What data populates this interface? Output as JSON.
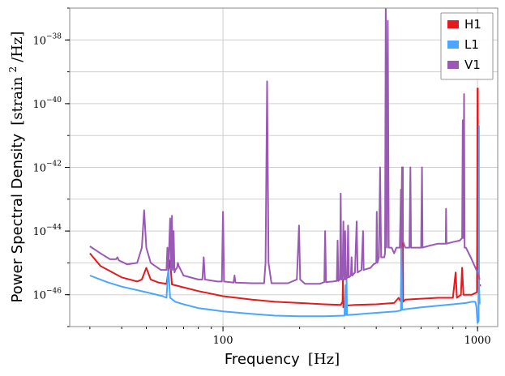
{
  "chart_data": {
    "type": "line",
    "xlabel": "Frequency",
    "xlabel_unit": "[Hz]",
    "ylabel": "Power Spectral Density",
    "ylabel_unit_prefix": "[strain",
    "ylabel_unit_sup": "2",
    "ylabel_unit_suffix": "/Hz]",
    "x_scale": "log",
    "y_scale": "log",
    "xlim": [
      25,
      1200
    ],
    "ylim": [
      1e-47,
      1e-37
    ],
    "grid": true,
    "legend_position": "top-right",
    "x_ticks": [
      {
        "value": 100,
        "label": "100"
      },
      {
        "value": 1000,
        "label": "1000"
      }
    ],
    "y_ticks": [
      {
        "value": 1e-46,
        "base": "10",
        "exp": "−46"
      },
      {
        "value": 1e-44,
        "base": "10",
        "exp": "−44"
      },
      {
        "value": 1e-42,
        "base": "10",
        "exp": "−42"
      },
      {
        "value": 1e-40,
        "base": "10",
        "exp": "−40"
      },
      {
        "value": 1e-38,
        "base": "10",
        "exp": "−38"
      }
    ],
    "series": [
      {
        "name": "H1",
        "color": "#e41a1c",
        "points": [
          [
            30,
            2e-45
          ],
          [
            33,
            8e-46
          ],
          [
            40,
            3.5e-46
          ],
          [
            46,
            2.6e-46
          ],
          [
            48,
            3e-46
          ],
          [
            50,
            7e-46
          ],
          [
            52,
            3e-46
          ],
          [
            56,
            2.4e-46
          ],
          [
            60,
            2.2e-46
          ],
          [
            62,
            1.2e-45
          ],
          [
            63,
            2.1e-46
          ],
          [
            70,
            1.7e-46
          ],
          [
            80,
            1.3e-46
          ],
          [
            100,
            9e-47
          ],
          [
            130,
            7e-47
          ],
          [
            160,
            6e-47
          ],
          [
            200,
            5.5e-47
          ],
          [
            250,
            5e-47
          ],
          [
            290,
            4.8e-47
          ],
          [
            295,
            6e-47
          ],
          [
            296,
            3e-46
          ],
          [
            297,
            4e-47
          ],
          [
            300,
            4.5e-47
          ],
          [
            330,
            4.8e-47
          ],
          [
            400,
            5e-47
          ],
          [
            470,
            5.5e-47
          ],
          [
            490,
            8e-47
          ],
          [
            500,
            6e-47
          ],
          [
            505,
            1e-42
          ],
          [
            508,
            1e-42
          ],
          [
            510,
            6e-47
          ],
          [
            520,
            7e-47
          ],
          [
            600,
            7.5e-47
          ],
          [
            700,
            8e-47
          ],
          [
            800,
            8e-47
          ],
          [
            820,
            5e-46
          ],
          [
            830,
            8e-47
          ],
          [
            860,
            1e-46
          ],
          [
            870,
            7e-46
          ],
          [
            880,
            1e-46
          ],
          [
            950,
            1e-46
          ],
          [
            995,
            1.2e-46
          ],
          [
            1000,
            3e-40
          ],
          [
            1003,
            3e-40
          ],
          [
            1006,
            1.5e-46
          ],
          [
            1020,
            2e-46
          ],
          [
            1030,
            2e-46
          ]
        ]
      },
      {
        "name": "L1",
        "color": "#4ba6ff",
        "points": [
          [
            30,
            4e-46
          ],
          [
            35,
            2.5e-46
          ],
          [
            40,
            1.8e-46
          ],
          [
            50,
            1.2e-46
          ],
          [
            58,
            9e-47
          ],
          [
            60,
            8e-47
          ],
          [
            61,
            7e-46
          ],
          [
            62,
            8e-47
          ],
          [
            65,
            6e-47
          ],
          [
            70,
            5e-47
          ],
          [
            80,
            3.8e-47
          ],
          [
            100,
            3e-47
          ],
          [
            130,
            2.5e-47
          ],
          [
            160,
            2.2e-47
          ],
          [
            200,
            2.1e-47
          ],
          [
            250,
            2.1e-47
          ],
          [
            300,
            2.2e-47
          ],
          [
            303,
            2e-46
          ],
          [
            304,
            2.3e-47
          ],
          [
            306,
            3e-46
          ],
          [
            307,
            2.3e-47
          ],
          [
            330,
            2.4e-47
          ],
          [
            400,
            2.7e-47
          ],
          [
            480,
            3e-47
          ],
          [
            500,
            3.2e-47
          ],
          [
            503,
            3.5e-45
          ],
          [
            505,
            3.4e-47
          ],
          [
            520,
            3.5e-47
          ],
          [
            600,
            4e-47
          ],
          [
            700,
            4.5e-47
          ],
          [
            800,
            5e-47
          ],
          [
            900,
            5.5e-47
          ],
          [
            950,
            6e-47
          ],
          [
            980,
            6e-47
          ],
          [
            990,
            4e-47
          ],
          [
            1000,
            1.3e-47
          ],
          [
            1010,
            1.5e-47
          ],
          [
            1012,
            2e-41
          ],
          [
            1014,
            2e-46
          ],
          [
            1020,
            5e-47
          ]
        ]
      },
      {
        "name": "V1",
        "color": "#9b59b6",
        "points": [
          [
            30,
            3.3e-45
          ],
          [
            33,
            2e-45
          ],
          [
            36,
            1.3e-45
          ],
          [
            38,
            1.3e-45
          ],
          [
            38.5,
            1.5e-45
          ],
          [
            39,
            1.2e-45
          ],
          [
            42,
            9e-46
          ],
          [
            46,
            1e-45
          ],
          [
            48,
            3e-45
          ],
          [
            49,
            4.5e-44
          ],
          [
            50,
            3e-45
          ],
          [
            52,
            1e-45
          ],
          [
            57,
            6e-46
          ],
          [
            60,
            6e-46
          ],
          [
            60.5,
            3e-45
          ],
          [
            61,
            6e-46
          ],
          [
            62,
            2.5e-44
          ],
          [
            62.5,
            6e-46
          ],
          [
            63,
            3e-44
          ],
          [
            63.5,
            6e-46
          ],
          [
            64,
            1e-44
          ],
          [
            64.5,
            5e-46
          ],
          [
            65,
            6e-46
          ],
          [
            66,
            7e-46
          ],
          [
            66.5,
            1e-45
          ],
          [
            67,
            8e-46
          ],
          [
            70,
            4e-46
          ],
          [
            80,
            3e-46
          ],
          [
            83,
            3e-46
          ],
          [
            84,
            1.5e-45
          ],
          [
            85,
            3e-46
          ],
          [
            95,
            2.6e-46
          ],
          [
            99,
            2.6e-46
          ],
          [
            100,
            4e-44
          ],
          [
            101,
            2.6e-46
          ],
          [
            110,
            2.4e-46
          ],
          [
            111,
            4e-46
          ],
          [
            112,
            2.4e-46
          ],
          [
            130,
            2.3e-46
          ],
          [
            145,
            2.3e-46
          ],
          [
            147,
            1e-45
          ],
          [
            149,
            5e-40
          ],
          [
            151,
            1e-45
          ],
          [
            155,
            2.3e-46
          ],
          [
            180,
            2.3e-46
          ],
          [
            195,
            3e-46
          ],
          [
            199,
            1.5e-44
          ],
          [
            201,
            3e-46
          ],
          [
            210,
            2.2e-46
          ],
          [
            240,
            2.2e-46
          ],
          [
            250,
            2.5e-46
          ],
          [
            252,
            1e-44
          ],
          [
            254,
            2.5e-46
          ],
          [
            270,
            2.6e-46
          ],
          [
            280,
            2.7e-46
          ],
          [
            282,
            5e-45
          ],
          [
            284,
            2.7e-46
          ],
          [
            288,
            3e-46
          ],
          [
            290,
            1.5e-43
          ],
          [
            292,
            3e-46
          ],
          [
            295,
            3e-46
          ],
          [
            297,
            2e-44
          ],
          [
            298,
            1e-45
          ],
          [
            300,
            3e-46
          ],
          [
            302,
            1e-44
          ],
          [
            304,
            3e-46
          ],
          [
            308,
            3.5e-46
          ],
          [
            310,
            1.5e-44
          ],
          [
            312,
            3.5e-46
          ],
          [
            318,
            4e-46
          ],
          [
            320,
            1.5e-45
          ],
          [
            322,
            4e-46
          ],
          [
            330,
            5e-46
          ],
          [
            335,
            2e-44
          ],
          [
            338,
            5e-46
          ],
          [
            350,
            6e-46
          ],
          [
            355,
            1e-44
          ],
          [
            357,
            6e-46
          ],
          [
            380,
            7e-46
          ],
          [
            390,
            9e-46
          ],
          [
            400,
            1e-45
          ],
          [
            402,
            4e-44
          ],
          [
            404,
            1e-45
          ],
          [
            410,
            1.5e-45
          ],
          [
            414,
            1e-42
          ],
          [
            418,
            1.5e-45
          ],
          [
            430,
            1.5e-45
          ],
          [
            433,
            2e-45
          ],
          [
            436,
            1.6e-37
          ],
          [
            440,
            3e-45
          ],
          [
            444,
            4e-38
          ],
          [
            448,
            3e-45
          ],
          [
            460,
            3e-45
          ],
          [
            470,
            2e-45
          ],
          [
            480,
            3e-45
          ],
          [
            490,
            3e-45
          ],
          [
            495,
            3e-45
          ],
          [
            498,
            3e-44
          ],
          [
            500,
            2e-43
          ],
          [
            502,
            3e-45
          ],
          [
            505,
            1e-42
          ],
          [
            508,
            5e-45
          ],
          [
            520,
            3e-45
          ],
          [
            540,
            3e-45
          ],
          [
            545,
            1e-42
          ],
          [
            548,
            3e-45
          ],
          [
            560,
            3e-45
          ],
          [
            600,
            3e-45
          ],
          [
            605,
            1e-42
          ],
          [
            608,
            3e-45
          ],
          [
            650,
            3.5e-45
          ],
          [
            700,
            4e-45
          ],
          [
            750,
            4e-45
          ],
          [
            752,
            5e-44
          ],
          [
            755,
            4e-45
          ],
          [
            800,
            4.5e-45
          ],
          [
            850,
            5e-45
          ],
          [
            870,
            6e-45
          ],
          [
            875,
            3e-41
          ],
          [
            880,
            6e-45
          ],
          [
            885,
            2e-40
          ],
          [
            890,
            3e-45
          ],
          [
            900,
            3e-45
          ],
          [
            940,
            1.5e-45
          ],
          [
            1000,
            5e-46
          ],
          [
            1020,
            3e-46
          ]
        ]
      }
    ]
  }
}
